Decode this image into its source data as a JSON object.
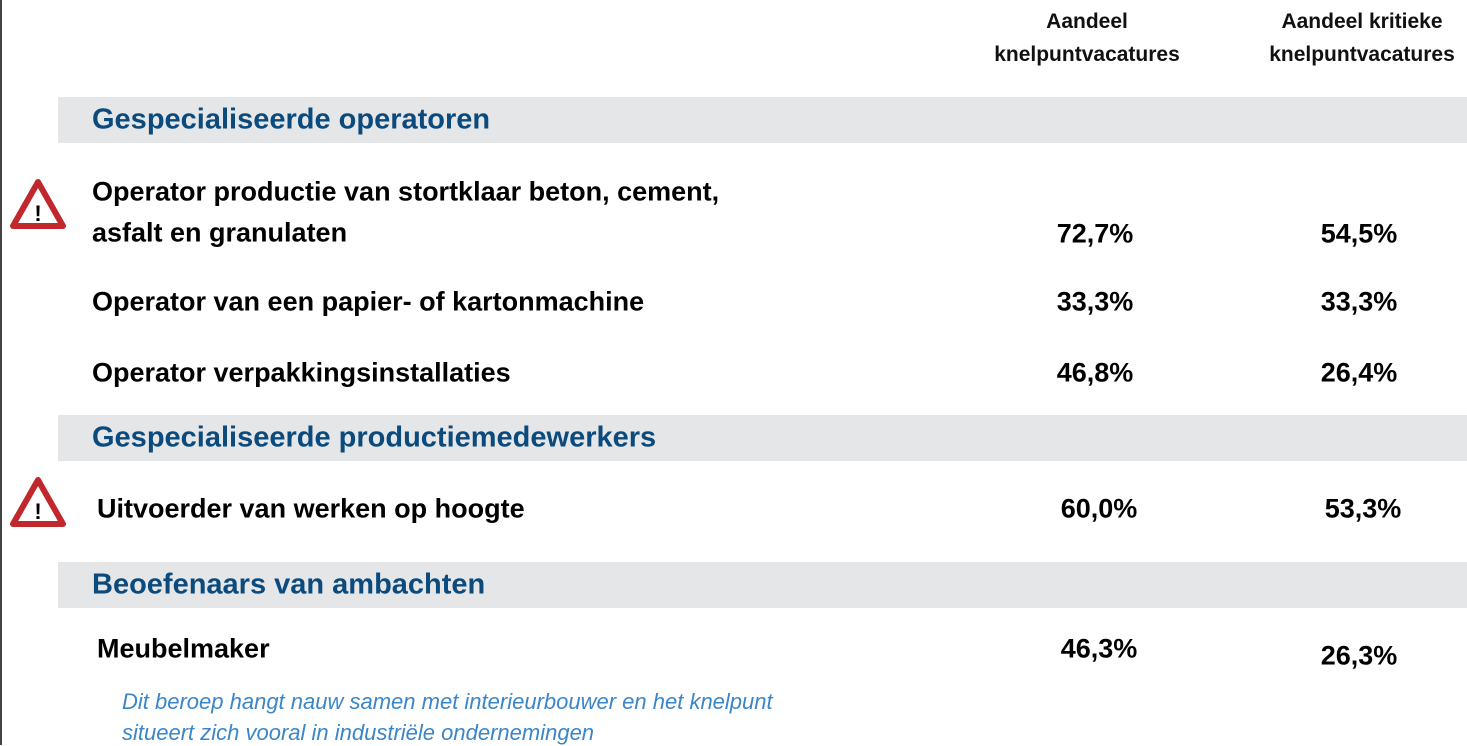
{
  "header": {
    "col1": [
      "Aandeel",
      "knelpuntvacatures"
    ],
    "col2": [
      "Aandeel kritieke",
      "knelpuntvacatures"
    ]
  },
  "sections": [
    {
      "title": "Gespecialiseerde operatoren",
      "rows": [
        {
          "label": [
            "Operator productie van stortklaar beton, cement,",
            "asfalt en granulaten"
          ],
          "col1": "72,7%",
          "col2": "54,5%"
        },
        {
          "label": [
            "Operator van een papier- of kartonmachine"
          ],
          "col1": "33,3%",
          "col2": "33,3%"
        },
        {
          "label": [
            "Operator verpakkingsinstallaties"
          ],
          "col1": "46,8%",
          "col2": "26,4%"
        }
      ]
    },
    {
      "title": "Gespecialiseerde productiemedewerkers",
      "rows": [
        {
          "label": [
            "Uitvoerder van werken op hoogte"
          ],
          "col1": "60,0%",
          "col2": "53,3%"
        }
      ]
    },
    {
      "title": "Beoefenaars van ambachten",
      "rows": [
        {
          "label": [
            "Meubelmaker"
          ],
          "col1": "46,3%",
          "col2": "26,3%"
        }
      ]
    }
  ],
  "note": [
    "Dit beroep hangt nauw samen met interieurbouwer en het knelpunt",
    "situeert zich vooral in industriële ondernemingen"
  ]
}
